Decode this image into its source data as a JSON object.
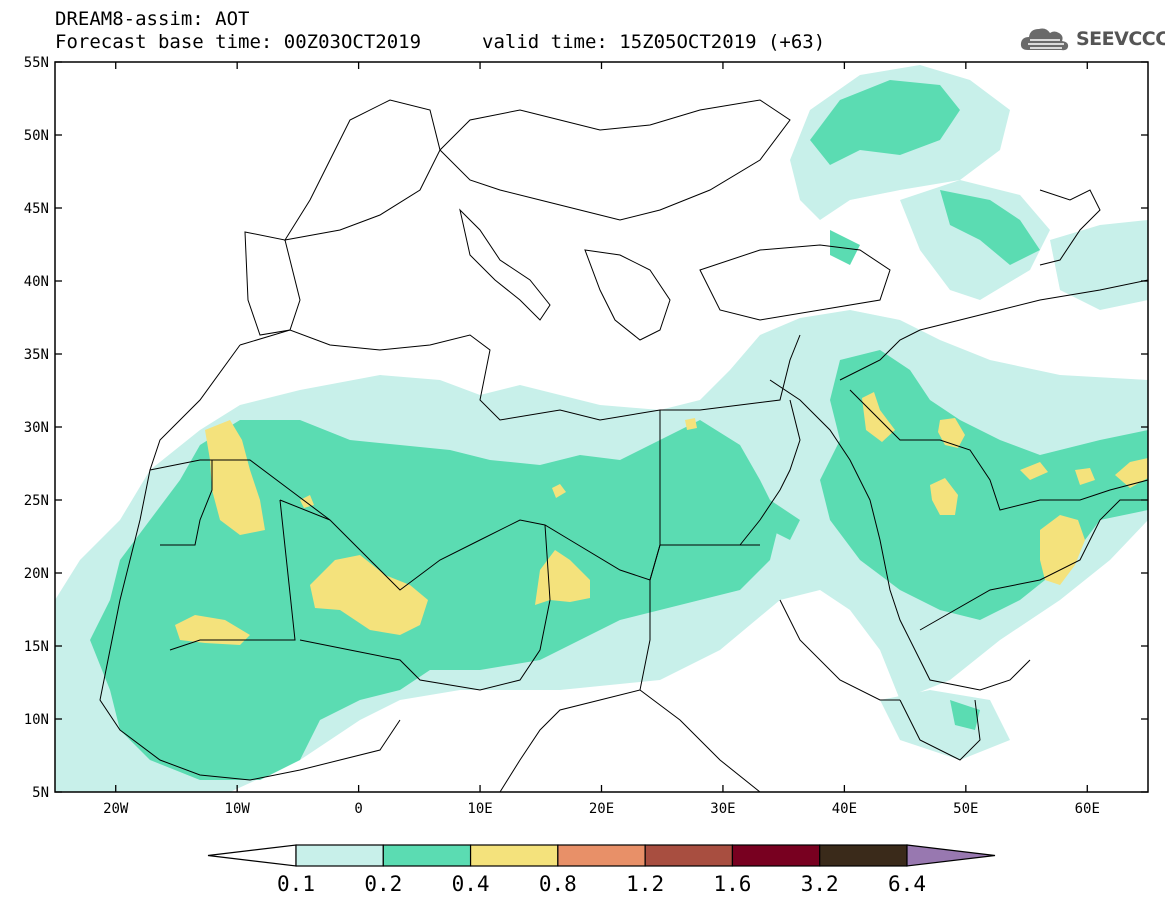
{
  "header": {
    "title": "DREAM8-assim: AOT",
    "base_time": "Forecast base time: 00Z03OCT2019",
    "valid_time": "valid time: 15Z05OCT2019 (+63)"
  },
  "logo": {
    "text": "SEEVCCC",
    "icon": "cloud-icon"
  },
  "map": {
    "lat_labels": [
      "55N",
      "50N",
      "45N",
      "40N",
      "35N",
      "30N",
      "25N",
      "20N",
      "15N",
      "10N",
      "5N"
    ],
    "lon_labels": [
      "20W",
      "10W",
      "0",
      "10E",
      "20E",
      "30E",
      "40E",
      "50E",
      "60E"
    ],
    "extent": {
      "lon": [
        -25,
        65
      ],
      "lat": [
        5,
        55
      ]
    }
  },
  "colorbar": {
    "labels": [
      "0.1",
      "0.2",
      "0.4",
      "0.8",
      "1.2",
      "1.6",
      "3.2",
      "6.4"
    ],
    "colors": [
      "#ffffff",
      "#c8f0ea",
      "#5bdcb2",
      "#f4e27c",
      "#e89068",
      "#a84e40",
      "#780020",
      "#3a2a1a",
      "#9878b0"
    ]
  }
}
